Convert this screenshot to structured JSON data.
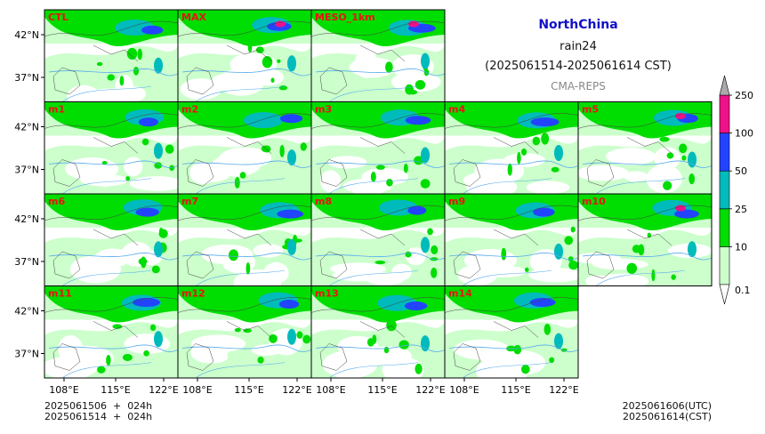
{
  "title": {
    "region": "NorthChina",
    "variable": "rain24",
    "period": "(2025061514-2025061614 CST)",
    "source": "CMA-REPS"
  },
  "panels": [
    "CTL",
    "MAX",
    "MESO_1km",
    "m1",
    "m2",
    "m3",
    "m4",
    "m5",
    "m6",
    "m7",
    "m8",
    "m9",
    "m10",
    "m11",
    "m12",
    "m13",
    "m14"
  ],
  "lat_ticks": [
    "42°N",
    "37°N"
  ],
  "lon_ticks": [
    "108°E",
    "115°E",
    "122°E"
  ],
  "colorbar": {
    "levels": [
      "0.1",
      "10",
      "25",
      "50",
      "100",
      "250"
    ],
    "colors": [
      "#ccffcc",
      "#00dd00",
      "#00bbbb",
      "#2244ff",
      "#ee1188"
    ],
    "over_color": "#aaaaaa"
  },
  "footer": {
    "init": "2025061506  +  024h\n2025061514  +  024h",
    "valid": "2025061606(UTC)\n2025061614(CST)"
  },
  "colors": {
    "panel_label": "#ee1111",
    "title": "#1010c8",
    "river": "#55aaee"
  }
}
